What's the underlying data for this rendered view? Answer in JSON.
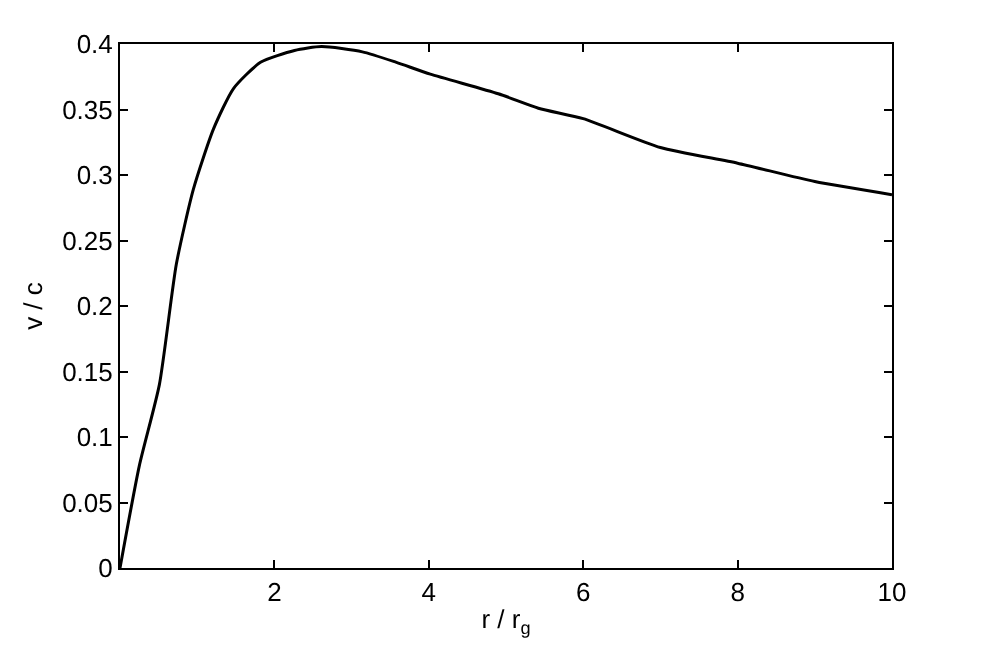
{
  "chart_data": {
    "type": "line",
    "xlabel": "r / r$_{g}$",
    "ylabel": "v / c",
    "x": [
      0,
      0.25,
      0.51,
      0.73,
      0.95,
      1.21,
      1.47,
      1.82,
      2.26,
      2.61,
      3.14,
      3.58,
      4.02,
      4.9,
      5.42,
      6,
      7,
      8,
      9,
      10
    ],
    "series": [
      {
        "color": "#000000",
        "values": [
          0,
          0.078,
          0.14,
          0.232,
          0.289,
          0.335,
          0.366,
          0.386,
          0.395,
          0.398,
          0.394,
          0.386,
          0.377,
          0.362,
          0.351,
          0.343,
          0.321,
          0.309,
          0.295,
          0.285
        ]
      }
    ],
    "xlim": [
      0,
      10
    ],
    "xticks": [
      2,
      4,
      6,
      8,
      10
    ],
    "ylim": [
      0,
      0.4
    ],
    "yticks": [
      0,
      0.05,
      0.1,
      0.15,
      0.2,
      0.25,
      0.3,
      0.35,
      0.4
    ],
    "grid": false,
    "marker": "none",
    "line_style": "solid"
  }
}
